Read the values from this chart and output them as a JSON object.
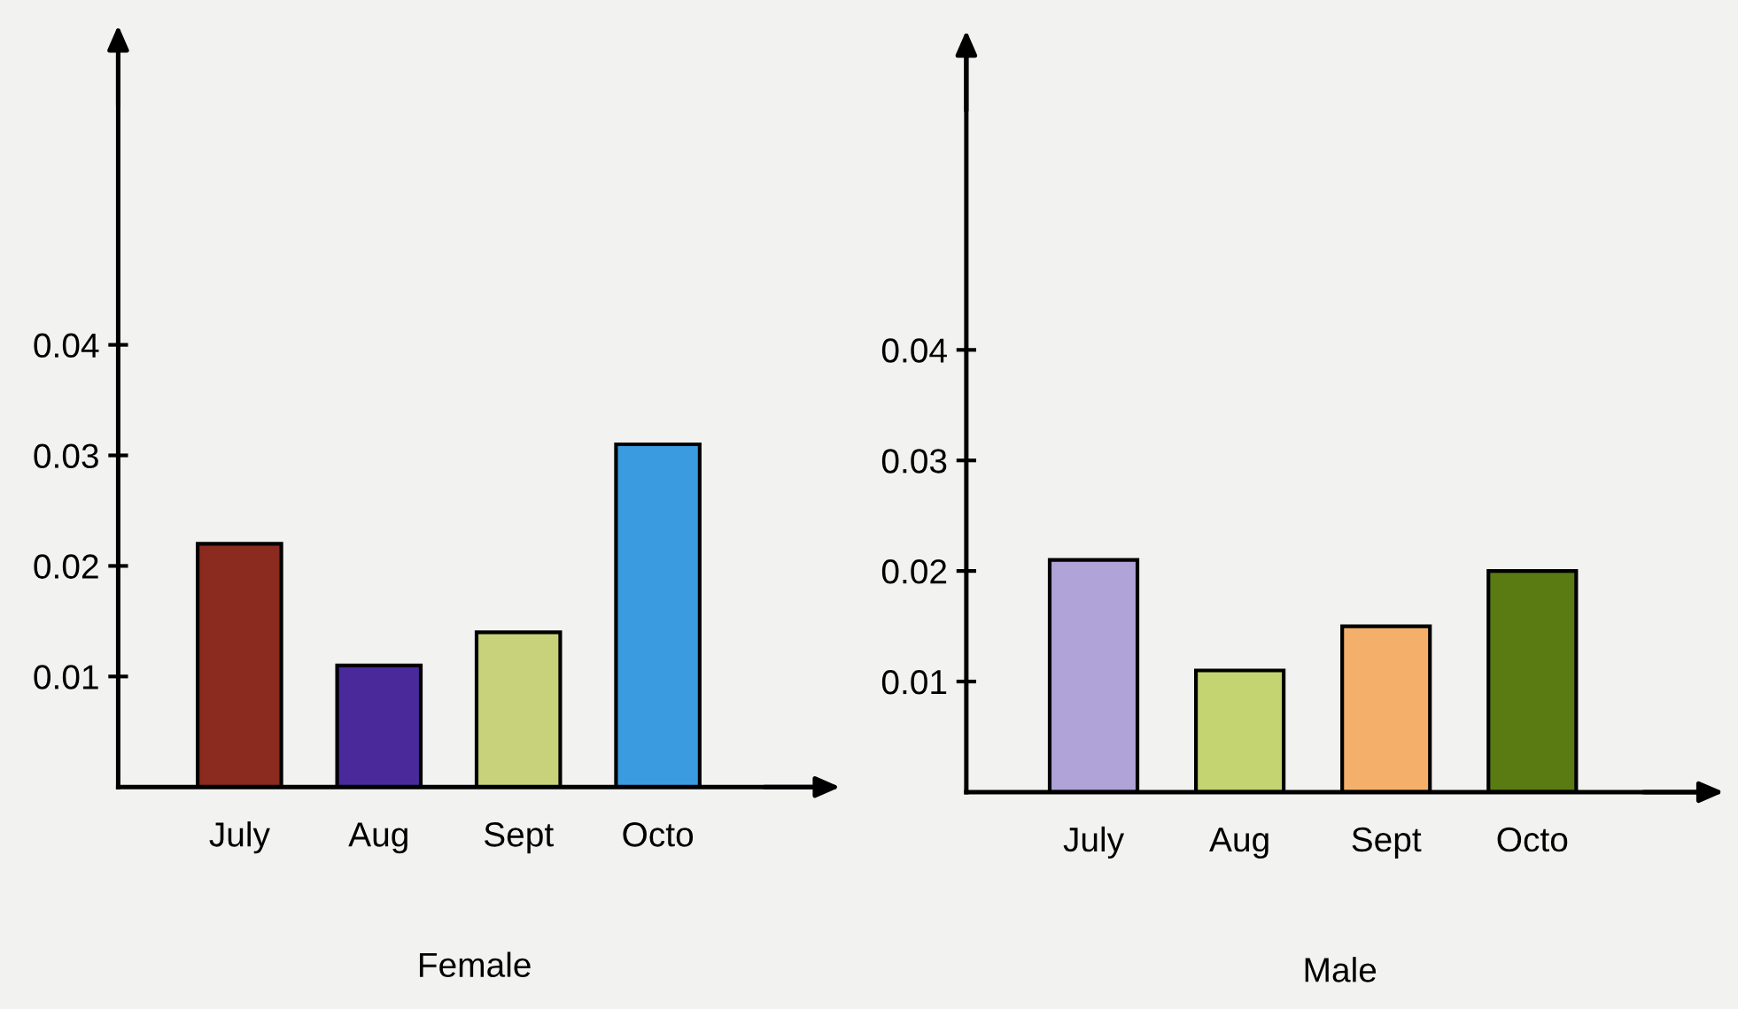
{
  "chart_data": [
    {
      "type": "bar",
      "xlabel": "Female",
      "categories": [
        "July",
        "Aug",
        "Sept",
        "Octo"
      ],
      "values": [
        0.022,
        0.011,
        0.014,
        0.031
      ],
      "colors": [
        "#8b2a1e",
        "#4a2a9a",
        "#c8d27a",
        "#3a9be0"
      ],
      "ylim": [
        0,
        0.068
      ],
      "yticks": [
        0.01,
        0.02,
        0.03,
        0.04
      ],
      "grid": false,
      "legend": false
    },
    {
      "type": "bar",
      "xlabel": "Male",
      "categories": [
        "July",
        "Aug",
        "Sept",
        "Octo"
      ],
      "values": [
        0.021,
        0.011,
        0.015,
        0.02
      ],
      "colors": [
        "#b0a3d8",
        "#c3d470",
        "#f4b06a",
        "#5a7a12"
      ],
      "ylim": [
        0,
        0.068
      ],
      "yticks": [
        0.01,
        0.02,
        0.03,
        0.04
      ],
      "grid": false,
      "legend": false
    }
  ]
}
